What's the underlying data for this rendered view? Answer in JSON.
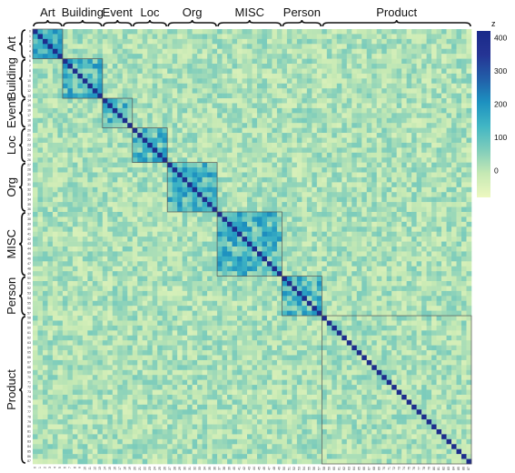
{
  "chart_data": {
    "type": "heatmap",
    "title": "",
    "xlabel": "",
    "ylabel": "",
    "n": 88,
    "tick_labels": [
      "0",
      "1",
      "2",
      "3",
      "4",
      "5",
      "6",
      "7",
      "8",
      "9",
      "10",
      "11",
      "12",
      "13",
      "14",
      "15",
      "16",
      "17",
      "18",
      "19",
      "20",
      "21",
      "22",
      "23",
      "24",
      "25",
      "26",
      "27",
      "28",
      "29",
      "30",
      "31",
      "32",
      "33",
      "34",
      "35",
      "36",
      "37",
      "38",
      "39",
      "40",
      "41",
      "42",
      "43",
      "44",
      "45",
      "46",
      "47",
      "48",
      "49",
      "50",
      "51",
      "52",
      "53",
      "54",
      "55",
      "56",
      "57",
      "58",
      "59",
      "60",
      "61",
      "62",
      "63",
      "64",
      "65",
      "66",
      "67",
      "68",
      "69",
      "70",
      "71",
      "72",
      "73",
      "74",
      "75",
      "76",
      "77",
      "78",
      "79",
      "80",
      "81",
      "82",
      "83",
      "84",
      "85",
      "86",
      "87"
    ],
    "groups": [
      {
        "name": "Art",
        "start": 0,
        "end": 5
      },
      {
        "name": "Building",
        "start": 6,
        "end": 13
      },
      {
        "name": "Event",
        "start": 14,
        "end": 19
      },
      {
        "name": "Loc",
        "start": 20,
        "end": 26
      },
      {
        "name": "Org",
        "start": 27,
        "end": 36
      },
      {
        "name": "MISC",
        "start": 37,
        "end": 49
      },
      {
        "name": "Person",
        "start": 50,
        "end": 57
      },
      {
        "name": "Product",
        "start": 58,
        "end": 87
      }
    ],
    "colorbar": {
      "title": "z",
      "range": [
        -80,
        420
      ],
      "ticks": [
        0,
        100,
        200,
        300,
        400
      ],
      "colorscale": [
        "#edf8c0",
        "#c6e9b4",
        "#7fcdbb",
        "#41b6c4",
        "#1d91c0",
        "#225ea8",
        "#253494",
        "#1a2a8a"
      ]
    },
    "diagonal_value": 400,
    "approx_within_group": 120,
    "approx_background": 20
  }
}
